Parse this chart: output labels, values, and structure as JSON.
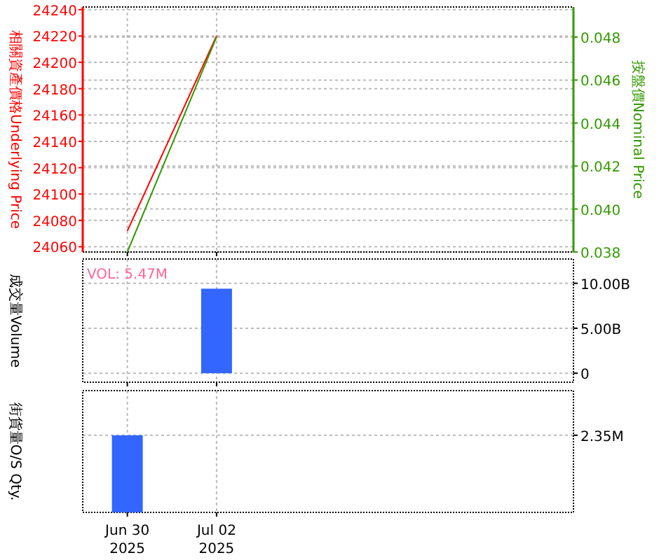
{
  "chart_data": [
    {
      "type": "line",
      "ylabel": "相關資產價格Underlying Price",
      "y2label": "按盤價Nominal Price",
      "x": [
        "2025-06-30",
        "2025-07-02"
      ],
      "xlim": [
        "2025-06-29",
        "2025-07-10"
      ],
      "xticks": [
        {
          "value": "2025-06-30",
          "label": null
        },
        {
          "value": "2025-07-02",
          "label": null
        }
      ],
      "ylim": [
        24056,
        24242
      ],
      "yticks": [
        24060,
        24080,
        24100,
        24120,
        24140,
        24160,
        24180,
        24200,
        24220,
        24240
      ],
      "y2lim": [
        0.038,
        0.0494
      ],
      "y2ticks": [
        0.038,
        {
          "value": 0.04,
          "label": "0.040"
        },
        0.042,
        0.044,
        0.046,
        0.048
      ],
      "grid": true,
      "tick_labels": "y",
      "series": [
        {
          "color": "#ff0000",
          "values": [
            24072,
            24220
          ]
        },
        {
          "color": "#339900",
          "values": [
            0.038,
            0.048
          ],
          "axis": "y2"
        }
      ]
    },
    {
      "type": "bar",
      "ylabel": "成交量Volume",
      "annotations": [
        "VOL: 5.47M"
      ],
      "xlim": [
        "2025-06-29",
        "2025-07-10"
      ],
      "xticks": [
        {
          "value": "2025-06-30",
          "label": null
        },
        {
          "value": "2025-07-02",
          "label": null
        }
      ],
      "y2lim": [
        -1000000000,
        12700000000
      ],
      "y2ticks": [
        {
          "value": 0,
          "label": "0"
        },
        {
          "value": 5000000000,
          "label": "5.00B"
        },
        {
          "value": 10000000000,
          "label": "10.00B"
        }
      ],
      "grid": true,
      "tick_labels": "y",
      "series": [
        {
          "color": "#3366ff",
          "x": [
            "2025-07-02"
          ],
          "values": [
            9400000000
          ],
          "axis": "y2"
        }
      ]
    },
    {
      "type": "bar",
      "ylabel": "街貨量O/S Qty.",
      "xlim": [
        "2025-06-29",
        "2025-07-10"
      ],
      "xticks": [
        {
          "value": "2025-06-30",
          "label": "Jun 30 2025"
        },
        {
          "value": "2025-07-02",
          "label": "Jul 02 2025"
        }
      ],
      "y2lim": [
        0,
        3710000
      ],
      "y2ticks": [
        {
          "value": 2350000,
          "label": "2.35M"
        }
      ],
      "grid": true,
      "series": [
        {
          "color": "#3366ff",
          "x": [
            "2025-06-30"
          ],
          "values": [
            2350000
          ],
          "axis": "y2"
        }
      ]
    }
  ]
}
